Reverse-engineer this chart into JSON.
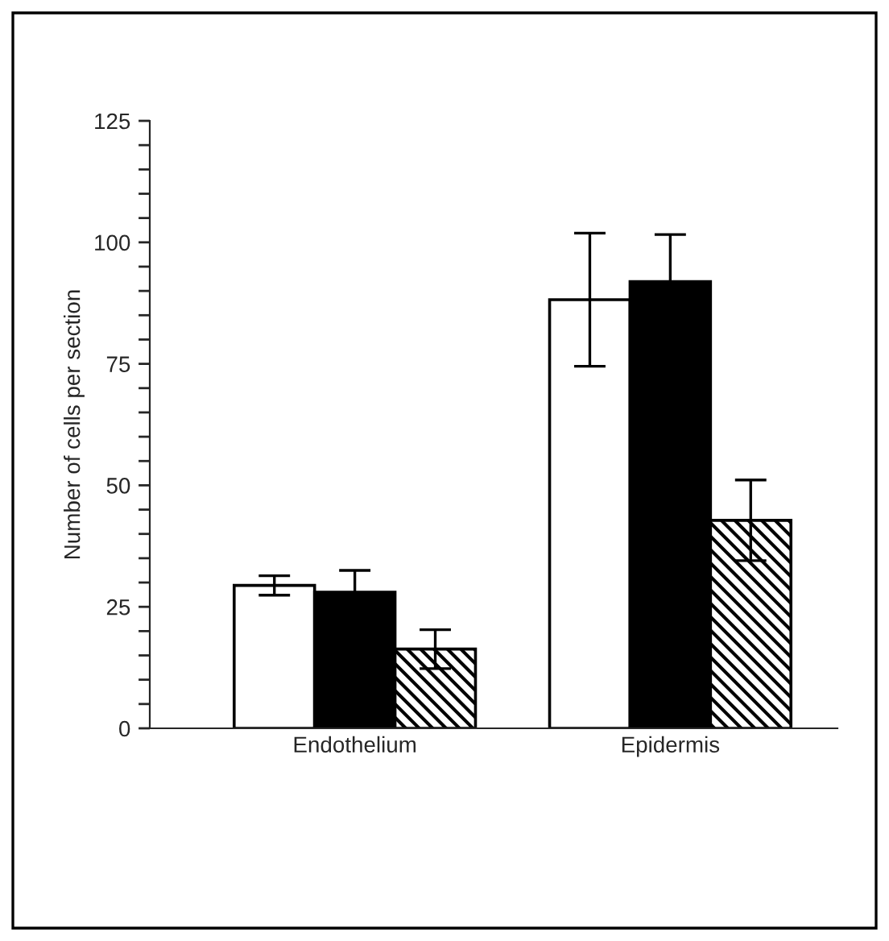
{
  "chart_data": {
    "type": "bar",
    "ylabel": "Number of cells per section",
    "categories": [
      "Endothelium",
      "Epidermis"
    ],
    "series": [
      {
        "color": "#ffffff",
        "values": [
          29.4,
          88.2
        ],
        "errors": [
          2,
          13.7
        ]
      },
      {
        "color": "#000000",
        "values": [
          28.0,
          91.9
        ],
        "errors": [
          4.5,
          9.7
        ]
      },
      {
        "color": "#000000",
        "values": [
          16.3,
          42.8
        ],
        "errors": [
          4,
          8.3
        ]
      }
    ],
    "ylim": [
      0,
      125
    ],
    "yticks": [
      0,
      {
        "value": 5,
        "label": null
      },
      {
        "value": 10,
        "label": null
      },
      {
        "value": 15,
        "label": null
      },
      {
        "value": 20,
        "label": null
      },
      25,
      {
        "value": 30,
        "label": null
      },
      {
        "value": 35,
        "label": null
      },
      {
        "value": 40,
        "label": null
      },
      {
        "value": 45,
        "label": null
      },
      50,
      {
        "value": 55,
        "label": null
      },
      {
        "value": 60,
        "label": null
      },
      {
        "value": 65,
        "label": null
      },
      {
        "value": 70,
        "label": null
      },
      75,
      {
        "value": 80,
        "label": null
      },
      {
        "value": 85,
        "label": null
      },
      {
        "value": 90,
        "label": null
      },
      {
        "value": 95,
        "label": null
      },
      100,
      {
        "value": 105,
        "label": null
      },
      {
        "value": 110,
        "label": null
      },
      {
        "value": 115,
        "label": null
      },
      {
        "value": 120,
        "label": null
      },
      125
    ],
    "grid": false,
    "legend": false
  }
}
